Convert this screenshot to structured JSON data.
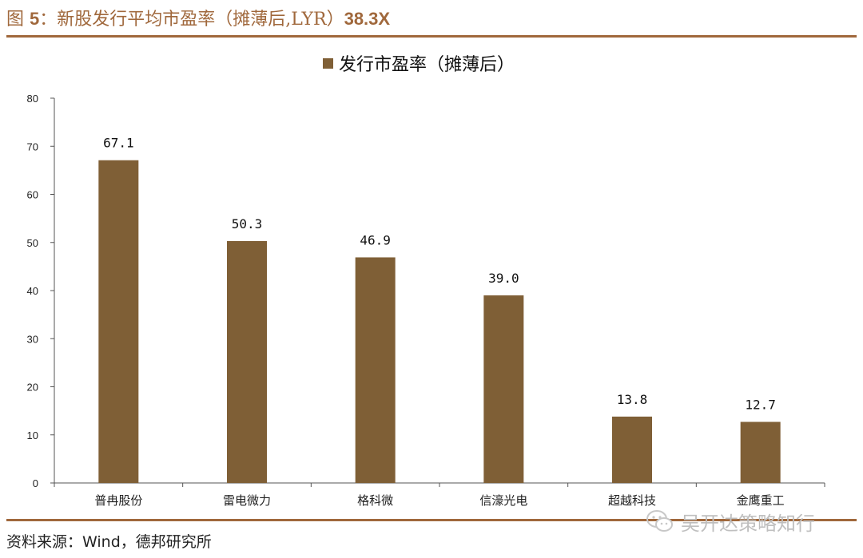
{
  "figure": {
    "label": "图",
    "number": "5",
    "colon": "：",
    "title_text": "新股发行平均市盈率（摊薄后,LYR）",
    "title_value": "38.3X"
  },
  "source": "资料来源：Wind，德邦研究所",
  "watermark": {
    "text": "吴开达策略知行",
    "icon": "wechat-icon"
  },
  "colors": {
    "accent": "#a0683c",
    "bar": "#7f5f36",
    "axis": "#555555"
  },
  "chart_data": {
    "type": "bar",
    "categories": [
      "普冉股份",
      "雷电微力",
      "格科微",
      "信濠光电",
      "超越科技",
      "金鹰重工"
    ],
    "series": [
      {
        "name": "发行市盈率（摊薄后）",
        "values": [
          67.1,
          50.3,
          46.9,
          39.0,
          13.8,
          12.7
        ],
        "labels": [
          "67.1",
          "50.3",
          "46.9",
          "39.0",
          "13.8",
          "12.7"
        ]
      }
    ],
    "title": "",
    "xlabel": "",
    "ylabel": "",
    "ylim": [
      0,
      80
    ],
    "yticks": [
      0,
      10,
      20,
      30,
      40,
      50,
      60,
      70,
      80
    ],
    "grid": false,
    "legend_position": "top-center"
  }
}
